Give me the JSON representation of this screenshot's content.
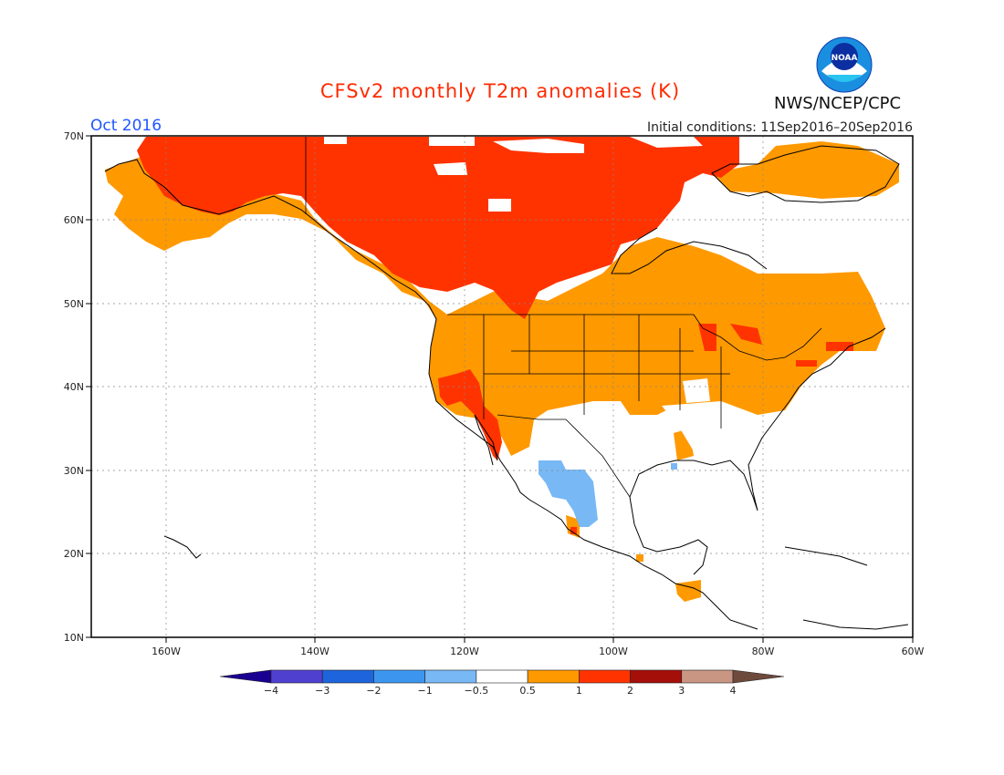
{
  "title": "CFSv2 monthly T2m anomalies (K)",
  "period": "Oct 2016",
  "initial_conditions": "Initial conditions: 11Sep2016–20Sep2016",
  "agency": "NWS/NCEP/CPC",
  "logo_text": "NOAA",
  "lat_labels": [
    "70N",
    "60N",
    "50N",
    "40N",
    "30N",
    "20N",
    "10N"
  ],
  "lon_labels": [
    "160W",
    "140W",
    "120W",
    "100W",
    "80W",
    "60W"
  ],
  "colorbar": {
    "labels": [
      "−4",
      "−3",
      "−2",
      "−1",
      "−0.5",
      "0.5",
      "1",
      "2",
      "3",
      "4"
    ],
    "colors": [
      "#1a0090",
      "#5040d0",
      "#1e64dc",
      "#3c96f0",
      "#78b8f5",
      "#ffffff",
      "#ff9900",
      "#ff3300",
      "#a50f0a",
      "#c89682",
      "#6e4a3c"
    ]
  },
  "map_layers": [
    {
      "name": "0.5 to 1",
      "color": "#ff9900"
    },
    {
      "name": "1 to 2",
      "color": "#ff3300"
    },
    {
      "name": "-1 to -0.5",
      "color": "#78b8f5"
    }
  ]
}
